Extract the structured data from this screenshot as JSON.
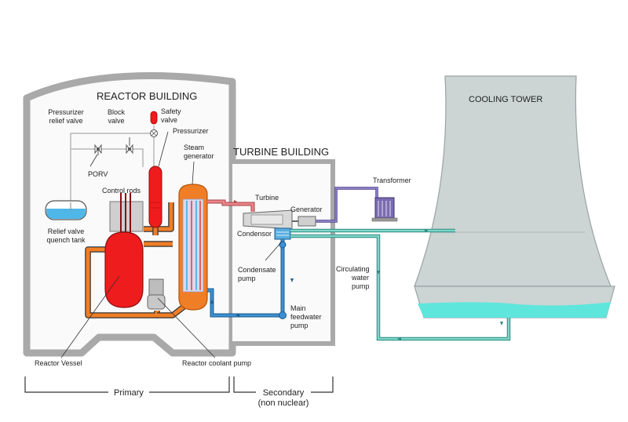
{
  "buildings": {
    "reactor": "REACTOR BUILDING",
    "turbine": "TURBINE BUILDING",
    "cooling_tower": "COOLING TOWER"
  },
  "labels": {
    "pressurizer_relief_valve_1": "Pressurizer",
    "pressurizer_relief_valve_2": "relief valve",
    "block_valve_1": "Block",
    "block_valve_2": "valve",
    "safety_valve_1": "Safety",
    "safety_valve_2": "valve",
    "pressurizer": "Pressurizer",
    "steam_generator_1": "Steam",
    "steam_generator_2": "generator",
    "porv": "PORV",
    "control_rods": "Control rods",
    "relief_tank_1": "Relief valve",
    "relief_tank_2": "quench tank",
    "reactor_vessel": "Reactor Vessel",
    "reactor_coolant_pump": "Reactor coolant pump",
    "turbine": "Turbine",
    "generator": "Generator",
    "transformer": "Transformer",
    "condensor": "Condensor",
    "condensate_pump_1": "Condensate",
    "condensate_pump_2": "pump",
    "main_feedwater_pump_1": "Main",
    "main_feedwater_pump_2": "feedwater",
    "main_feedwater_pump_3": "pump",
    "circulating_pump_1": "Circulating",
    "circulating_pump_2": "water",
    "circulating_pump_3": "pump"
  },
  "brackets": {
    "primary": "Primary",
    "secondary_1": "Secondary",
    "secondary_2": "(non nuclear)"
  },
  "colors": {
    "reactor_red": "#ee1c1c",
    "hot_leg_orange": "#f07e26",
    "steam_pink": "#e8848a",
    "feedwater_blue": "#3d8fd1",
    "circulating_teal": "#7fd6c8",
    "tower_gray": "#ccd4d4",
    "transformer_purple": "#7b6bb0",
    "building_gray": "#a9a9a9"
  }
}
